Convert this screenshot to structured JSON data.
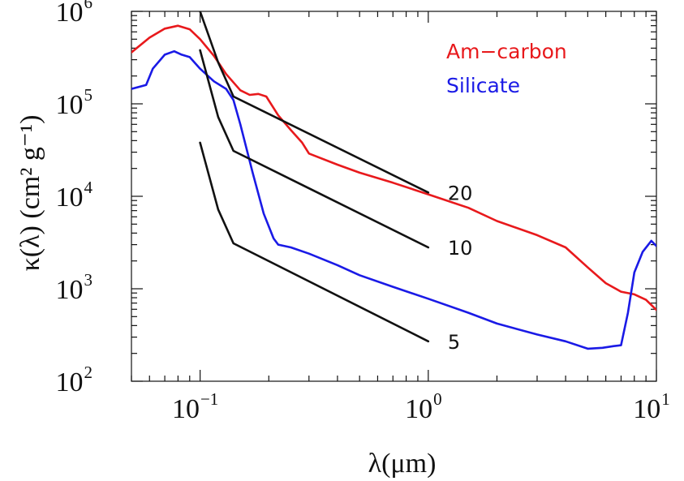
{
  "chart_data": {
    "type": "line",
    "xlabel": "λ(μm)",
    "ylabel": "κ(λ)  (cm² g⁻¹)",
    "xscale": "log",
    "yscale": "log",
    "xlim": [
      0.05,
      10
    ],
    "ylim": [
      100,
      1000000
    ],
    "grid": false,
    "legend_position": "top-right",
    "x_tick_labels": [
      {
        "value": 0.1,
        "base": "10",
        "exp": "−1"
      },
      {
        "value": 1,
        "base": "10",
        "exp": "0"
      },
      {
        "value": 10,
        "base": "10",
        "exp": "1"
      }
    ],
    "y_tick_labels": [
      {
        "value": 100,
        "base": "10",
        "exp": "2"
      },
      {
        "value": 1000,
        "base": "10",
        "exp": "3"
      },
      {
        "value": 10000,
        "base": "10",
        "exp": "4"
      },
      {
        "value": 100000,
        "base": "10",
        "exp": "5"
      },
      {
        "value": 1000000,
        "base": "10",
        "exp": "6"
      }
    ],
    "series": [
      {
        "name": "Am−carbon",
        "color": "#e8191c",
        "x": [
          0.05,
          0.06,
          0.07,
          0.08,
          0.09,
          0.1,
          0.115,
          0.13,
          0.15,
          0.165,
          0.18,
          0.195,
          0.22,
          0.25,
          0.28,
          0.3,
          0.4,
          0.5,
          0.7,
          1.0,
          1.5,
          2.0,
          3.0,
          4.0,
          5.0,
          6.0,
          7.0,
          8.0,
          9.0,
          10.0
        ],
        "y": [
          360000,
          520000,
          650000,
          700000,
          640000,
          500000,
          330000,
          210000,
          140000,
          125000,
          128000,
          120000,
          75000,
          52000,
          38000,
          29000,
          22000,
          18000,
          14000,
          10500,
          7500,
          5400,
          3800,
          2800,
          1700,
          1150,
          930,
          870,
          760,
          590
        ]
      },
      {
        "name": "Silicate",
        "color": "#1a1ae6",
        "x": [
          0.05,
          0.058,
          0.062,
          0.07,
          0.077,
          0.083,
          0.09,
          0.1,
          0.115,
          0.13,
          0.14,
          0.15,
          0.17,
          0.19,
          0.21,
          0.22,
          0.25,
          0.3,
          0.4,
          0.5,
          0.7,
          1.0,
          1.5,
          2.0,
          3.0,
          4.0,
          5.0,
          5.8,
          6.5,
          7.0,
          7.5,
          8.0,
          8.7,
          9.5,
          10.0
        ],
        "y": [
          145000,
          160000,
          240000,
          340000,
          370000,
          340000,
          320000,
          240000,
          175000,
          145000,
          110000,
          60000,
          18000,
          6500,
          3500,
          3000,
          2800,
          2400,
          1800,
          1400,
          1050,
          780,
          550,
          420,
          320,
          270,
          225,
          230,
          240,
          245,
          550,
          1500,
          2500,
          3300,
          2900
        ]
      }
    ],
    "reference_lines": [
      {
        "label": "20",
        "x": [
          0.1,
          0.12,
          0.14,
          1.0
        ],
        "y": [
          1000000,
          280000,
          120000,
          11000
        ]
      },
      {
        "label": "10",
        "x": [
          0.1,
          0.12,
          0.14,
          1.0
        ],
        "y": [
          380000,
          72000,
          31000,
          2800
        ]
      },
      {
        "label": "5",
        "x": [
          0.1,
          0.12,
          0.14,
          1.0
        ],
        "y": [
          38000,
          7200,
          3100,
          270
        ]
      }
    ]
  }
}
